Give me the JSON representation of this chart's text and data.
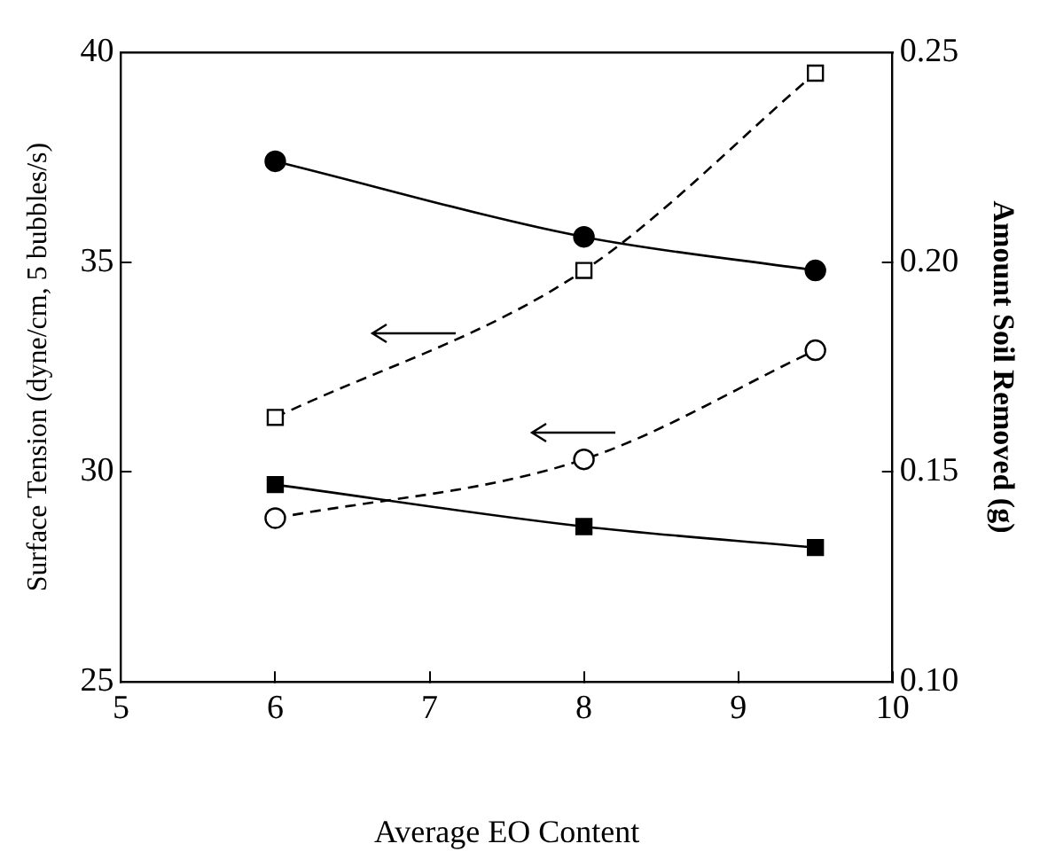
{
  "chart_data": {
    "type": "line",
    "xlabel": "Average EO Content",
    "ylabel": "Surface Tension (dyne/cm, 5 bubbles/s)",
    "y2label": "Amount Soil Removed (g)",
    "x": [
      6,
      8,
      9.5
    ],
    "series": [
      {
        "color": "#000000",
        "values": [
          0.224,
          0.206,
          0.198
        ],
        "axis": "y2",
        "marker": "circle",
        "line_style": "solid"
      },
      {
        "color": "#000000",
        "values": [
          0.147,
          0.137,
          0.132
        ],
        "axis": "y2",
        "marker": "square",
        "line_style": "solid"
      },
      {
        "color": "#000000",
        "values": [
          31.3,
          34.8,
          39.5
        ],
        "marker": "square",
        "line_style": "dashed"
      },
      {
        "color": "#000000",
        "values": [
          28.9,
          30.3,
          32.9
        ],
        "marker": "circle",
        "line_style": "dashed"
      }
    ],
    "xlim": [
      5,
      10
    ],
    "xticks": [
      5,
      6,
      7,
      8,
      9,
      10
    ],
    "ylim": [
      25,
      40
    ],
    "yticks": [
      25,
      30,
      35,
      40
    ],
    "y2lim": [
      0.1,
      0.25
    ],
    "y2ticks": [
      {
        "value": 0.1,
        "label": "0.10"
      },
      {
        "value": 0.15,
        "label": "0.15"
      },
      {
        "value": 0.2,
        "label": "0.20"
      },
      {
        "value": 0.25,
        "label": "0.25"
      }
    ],
    "grid": false,
    "legend": false
  }
}
